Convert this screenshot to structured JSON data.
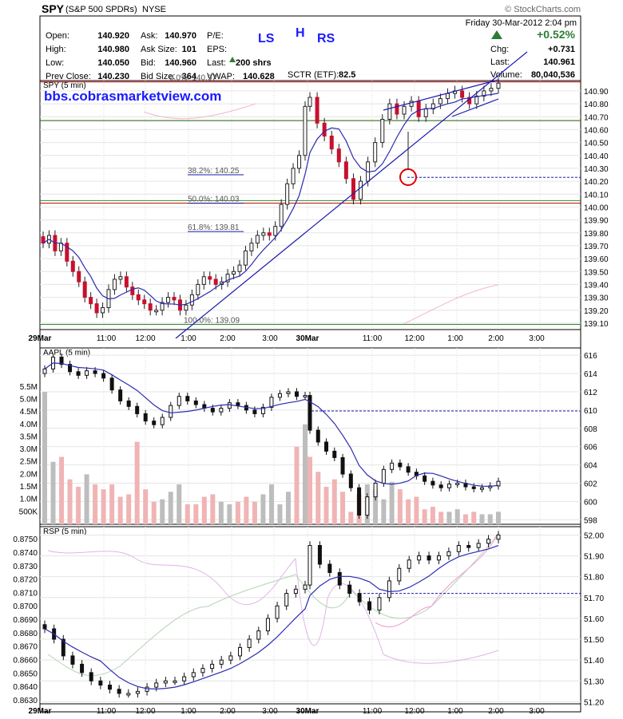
{
  "header": {
    "symbol": "SPY",
    "name": "(S&P 500 SPDRs)",
    "exchange": "NYSE",
    "copyright": "© StockCharts.com",
    "date": "Friday  30-Mar-2012  2:04 pm",
    "pct_change": "+0.52%",
    "up_color": "#2e7d32",
    "quote": [
      [
        "Open:",
        "140.920",
        "Ask:",
        "140.970",
        "P/E:",
        ""
      ],
      [
        "High:",
        "140.980",
        "Ask Size:",
        "101",
        "EPS:",
        ""
      ],
      [
        "Low:",
        "140.050",
        "Bid:",
        "140.960",
        "Last:",
        "200 shrs"
      ],
      [
        "Prev Close:",
        "140.230",
        "Bid Size:",
        "364",
        "VWAP:",
        "140.628"
      ]
    ],
    "sctr_label": "SCTR (ETF):",
    "sctr_value": "82.5",
    "right": [
      [
        "Chg:",
        "+0.731"
      ],
      [
        "Last:",
        "140.961"
      ],
      [
        "Volume:",
        "80,040,536"
      ]
    ]
  },
  "annotations": {
    "ls": "LS",
    "h": "H",
    "rs": "RS",
    "site": "bbs.cobrasmarketview.com",
    "fib": [
      "0.0%: 140.97",
      "38.2%: 140.25",
      "50.0%: 140.03",
      "61.8%: 139.81",
      "100.0%: 139.09"
    ]
  },
  "x_labels": [
    "29Mar",
    "11:00",
    "12:00",
    "1:00",
    "2:00",
    "3:00",
    "30Mar",
    "11:00",
    "12:00",
    "1:00",
    "2:00",
    "3:00"
  ],
  "chart_data": [
    {
      "type": "candlestick",
      "title": "SPY (5 min)",
      "ylim": [
        139.05,
        140.98
      ],
      "yticks": [
        "140.90",
        "140.80",
        "140.70",
        "140.60",
        "140.50",
        "140.40",
        "140.30",
        "140.20",
        "140.10",
        "140.00",
        "139.90",
        "139.80",
        "139.70",
        "139.60",
        "139.50",
        "139.40",
        "139.30",
        "139.20",
        "139.10"
      ],
      "ytick_values": [
        140.9,
        140.8,
        140.7,
        140.6,
        140.5,
        140.4,
        140.3,
        140.2,
        140.1,
        140.0,
        139.9,
        139.8,
        139.7,
        139.6,
        139.5,
        139.4,
        139.3,
        139.2,
        139.1
      ],
      "close": [
        139.72,
        139.78,
        139.66,
        139.72,
        139.58,
        139.5,
        139.42,
        139.3,
        139.25,
        139.18,
        139.22,
        139.36,
        139.44,
        139.46,
        139.38,
        139.32,
        139.28,
        139.25,
        139.2,
        139.2,
        139.26,
        139.3,
        139.28,
        139.2,
        139.24,
        139.32,
        139.4,
        139.46,
        139.44,
        139.4,
        139.42,
        139.48,
        139.5,
        139.55,
        139.66,
        139.72,
        139.78,
        139.8,
        139.78,
        139.85,
        140.02,
        140.18,
        140.3,
        140.4,
        140.78,
        140.85,
        140.65,
        140.55,
        140.45,
        140.35,
        140.22,
        140.06,
        140.2,
        140.35,
        140.5,
        140.68,
        140.8,
        140.72,
        140.78,
        140.82,
        140.7,
        140.76,
        140.8,
        140.84,
        140.88,
        140.9,
        140.85,
        140.8,
        140.86,
        140.9,
        140.92,
        140.96
      ],
      "low_points": [
        [
          4,
          139.34
        ],
        [
          8,
          139.1
        ],
        [
          23,
          139.2
        ],
        [
          51,
          140.05
        ],
        [
          60,
          140.29
        ]
      ],
      "ma_color": "#2b2bb0",
      "candle_up": "#1a1a1a",
      "candle_down": "#c8102e",
      "h_lines": [
        {
          "value": 140.97,
          "color": "#c00000"
        },
        {
          "value": 140.67,
          "color": "#c00000"
        },
        {
          "value": 140.03,
          "color": "#c00000"
        },
        {
          "value": 140.67,
          "color": "#2e8b2e"
        },
        {
          "value": 140.05,
          "color": "#2e8b2e"
        },
        {
          "value": 139.09,
          "color": "#2e8b2e"
        }
      ],
      "dashed_level": 140.23
    },
    {
      "type": "candlestick_volume",
      "title": "AAPL (5 min)",
      "ylim": [
        597.5,
        616.8
      ],
      "yticks": [
        "616",
        "614",
        "612",
        "610",
        "608",
        "606",
        "604",
        "602",
        "600",
        "598"
      ],
      "ytick_values": [
        616,
        614,
        612,
        610,
        608,
        606,
        604,
        602,
        600,
        598
      ],
      "vol_ticks": [
        "5.5M",
        "5.0M",
        "4.5M",
        "4.0M",
        "3.5M",
        "3.0M",
        "2.5M",
        "2.0M",
        "1.5M",
        "1.0M",
        "500K"
      ],
      "vol_tick_values": [
        5.5,
        5.0,
        4.5,
        4.0,
        3.5,
        3.0,
        2.5,
        2.0,
        1.5,
        1.0,
        0.5
      ],
      "vol_max": 6.0,
      "close": [
        614.5,
        615.8,
        615.0,
        614.2,
        613.8,
        614.3,
        614.0,
        613.5,
        612.2,
        611.0,
        610.4,
        609.6,
        608.8,
        608.4,
        609.2,
        610.5,
        611.5,
        611.0,
        610.6,
        610.2,
        609.8,
        610.2,
        610.8,
        610.5,
        610.0,
        609.6,
        610.3,
        611.4,
        611.8,
        612.0,
        611.5,
        611.6,
        607.8,
        606.5,
        605.5,
        604.8,
        603.0,
        601.5,
        598.5,
        600.5,
        602.0,
        603.5,
        604.2,
        603.8,
        603.2,
        602.8,
        602.2,
        601.8,
        601.5,
        601.9,
        602.0,
        601.6,
        601.4,
        601.5,
        601.7,
        602.2
      ],
      "volume": [
        5.3,
        2.5,
        2.7,
        1.8,
        1.5,
        2.0,
        1.6,
        1.4,
        1.6,
        1.1,
        1.2,
        3.3,
        1.4,
        0.9,
        1.0,
        1.3,
        1.6,
        0.8,
        0.8,
        1.1,
        1.2,
        0.9,
        0.8,
        0.9,
        1.1,
        0.9,
        1.2,
        1.6,
        0.8,
        1.3,
        3.1,
        4.0,
        2.7,
        2.1,
        1.5,
        1.8,
        1.3,
        0.5,
        1.2,
        1.6,
        1.4,
        1.0,
        1.7,
        1.4,
        1.0,
        1.1,
        0.6,
        0.7,
        0.5,
        0.5,
        0.6,
        0.4,
        0.5,
        0.4,
        0.4,
        0.5
      ],
      "dashed_level": 609.9
    },
    {
      "type": "candlestick_ratio",
      "title": "RSP (5 min)",
      "ylim": [
        0.8627,
        0.8759
      ],
      "yticks": [
        "0.8750",
        "0.8740",
        "0.8730",
        "0.8720",
        "0.8710",
        "0.8700",
        "0.8690",
        "0.8680",
        "0.8670",
        "0.8660",
        "0.8650",
        "0.8640",
        "0.8630"
      ],
      "ytick_values": [
        0.875,
        0.874,
        0.873,
        0.872,
        0.871,
        0.87,
        0.869,
        0.868,
        0.867,
        0.866,
        0.865,
        0.864,
        0.863
      ],
      "right_ylim": [
        51.19,
        52.04
      ],
      "right_yticks": [
        "52.00",
        "51.90",
        "51.80",
        "51.70",
        "51.60",
        "51.50",
        "51.40",
        "51.30",
        "51.20"
      ],
      "right_ytick_values": [
        52.0,
        51.9,
        51.8,
        51.7,
        51.6,
        51.5,
        51.4,
        51.3,
        51.2
      ],
      "close": [
        51.55,
        51.5,
        51.42,
        51.38,
        51.34,
        51.3,
        51.28,
        51.26,
        51.24,
        51.24,
        51.25,
        51.27,
        51.29,
        51.3,
        51.3,
        51.32,
        51.34,
        51.36,
        51.38,
        51.4,
        51.42,
        51.46,
        51.5,
        51.54,
        51.6,
        51.66,
        51.72,
        51.74,
        51.76,
        51.95,
        51.86,
        51.82,
        51.76,
        51.72,
        51.68,
        51.64,
        51.7,
        51.78,
        51.84,
        51.88,
        51.9,
        51.88,
        51.9,
        51.92,
        51.95,
        51.94,
        51.96,
        51.98,
        52.0
      ],
      "dashed_level": 51.72
    }
  ]
}
